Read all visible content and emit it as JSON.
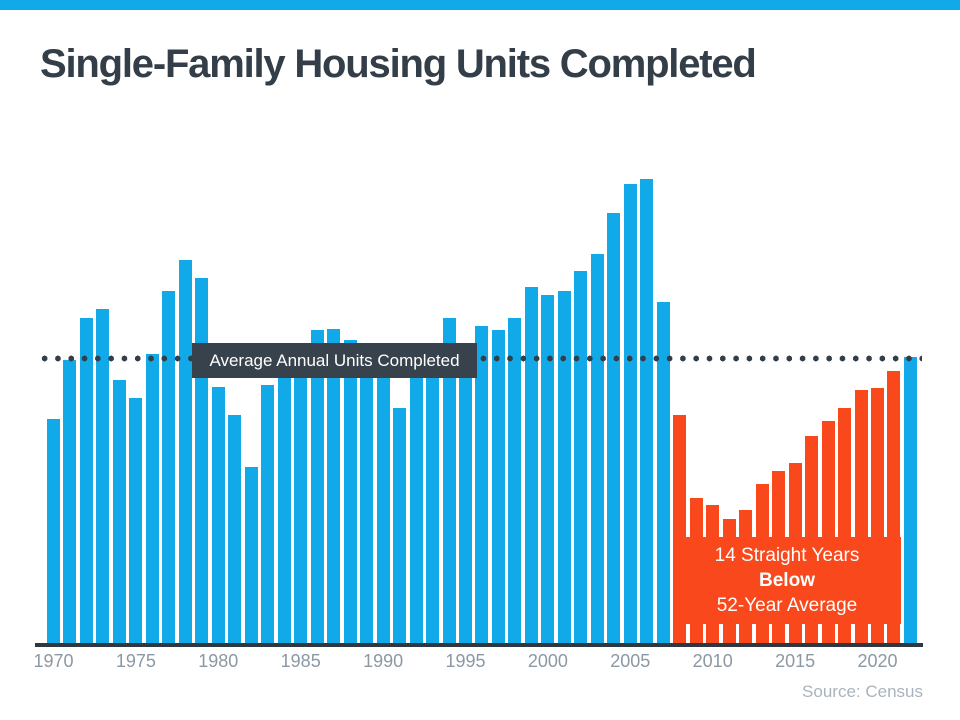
{
  "header": {
    "title": "Single-Family Housing Units Completed",
    "accent_color": "#12A9E8"
  },
  "footer": {
    "source": "Source: Census"
  },
  "chart_data": {
    "type": "bar",
    "title": "Single-Family Housing Units Completed",
    "unit": "thousands of units per year (estimated from bar heights; no y-axis shown)",
    "categories": [
      1970,
      1971,
      1972,
      1973,
      1974,
      1975,
      1976,
      1977,
      1978,
      1979,
      1980,
      1981,
      1982,
      1983,
      1984,
      1985,
      1986,
      1987,
      1988,
      1989,
      1990,
      1991,
      1992,
      1993,
      1994,
      1995,
      1996,
      1997,
      1998,
      1999,
      2000,
      2001,
      2002,
      2003,
      2004,
      2005,
      2006,
      2007,
      2008,
      2009,
      2010,
      2011,
      2012,
      2013,
      2014,
      2015,
      2016,
      2017,
      2018,
      2019,
      2020,
      2021,
      2022
    ],
    "values": [
      800,
      1010,
      1160,
      1190,
      940,
      875,
      1030,
      1255,
      1365,
      1300,
      915,
      815,
      630,
      920,
      1025,
      1070,
      1115,
      1120,
      1080,
      1025,
      965,
      840,
      965,
      1040,
      1160,
      1065,
      1130,
      1115,
      1160,
      1270,
      1240,
      1255,
      1325,
      1385,
      1530,
      1635,
      1650,
      1215,
      815,
      520,
      495,
      445,
      480,
      570,
      615,
      645,
      740,
      795,
      840,
      905,
      910,
      970,
      1020
    ],
    "bar_colors": {
      "default": "#12A9E8",
      "below_average_streak": "#F8481C"
    },
    "below_average_streak_years": {
      "start": 2008,
      "end": 2021
    },
    "average_line": {
      "label": "Average Annual Units Completed",
      "value": 1010,
      "style": "dotted",
      "color": "#333E48"
    },
    "annotation": {
      "line1": "14 Straight Years",
      "line2": "Below",
      "line3": "52-Year Average"
    },
    "x_tick_labels": [
      "1970",
      "1975",
      "1980",
      "1985",
      "1990",
      "1995",
      "2000",
      "2005",
      "2010",
      "2015",
      "2020"
    ],
    "x_tick_years": [
      1970,
      1975,
      1980,
      1985,
      1990,
      1995,
      2000,
      2005,
      2010,
      2015,
      2020
    ],
    "ylim": [
      0,
      1750
    ],
    "grid": false,
    "legend": false
  }
}
